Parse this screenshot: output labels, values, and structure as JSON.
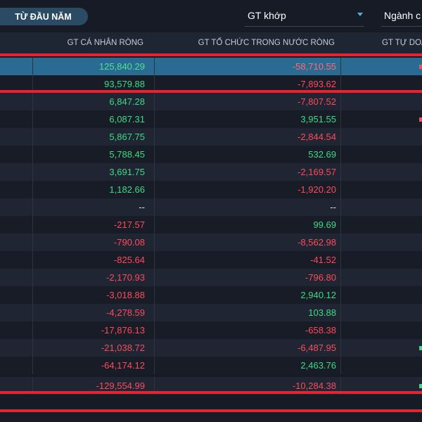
{
  "filter": {
    "period_label": "TỪ ĐẦU NĂM",
    "value_type": "GT khớp",
    "group_select": "Ngành c"
  },
  "table": {
    "headers": {
      "individual": "GT CÁ NHÂN RÒNG",
      "domestic_institution": "GT TỔ CHỨC TRONG NƯỚC RÒNG",
      "proprietary": "GT TỰ DOA"
    },
    "rows": [
      {
        "individual": "125,840.29",
        "individual_sign": "pos",
        "institution": "-58,710.55",
        "institution_sign": "neg",
        "prop_sign": "neg",
        "highlight": true
      },
      {
        "individual": "93,579.88",
        "individual_sign": "pos",
        "institution": "-7,893.62",
        "institution_sign": "neg",
        "prop_sign": ""
      },
      {
        "individual": "6,847.28",
        "individual_sign": "pos",
        "institution": "-7,807.52",
        "institution_sign": "neg",
        "prop_sign": ""
      },
      {
        "individual": "6,087.31",
        "individual_sign": "pos",
        "institution": "3,951.55",
        "institution_sign": "pos",
        "prop_sign": "neg"
      },
      {
        "individual": "5,867.75",
        "individual_sign": "pos",
        "institution": "-2,844.54",
        "institution_sign": "neg",
        "prop_sign": ""
      },
      {
        "individual": "5,788.45",
        "individual_sign": "pos",
        "institution": "532.69",
        "institution_sign": "pos",
        "prop_sign": ""
      },
      {
        "individual": "3,691.75",
        "individual_sign": "pos",
        "institution": "-2,169.57",
        "institution_sign": "neg",
        "prop_sign": ""
      },
      {
        "individual": "1,182.66",
        "individual_sign": "pos",
        "institution": "-1,920.20",
        "institution_sign": "neg",
        "prop_sign": ""
      },
      {
        "individual": "--",
        "individual_sign": "neu",
        "institution": "--",
        "institution_sign": "neu",
        "prop_sign": ""
      },
      {
        "individual": "-217.57",
        "individual_sign": "neg",
        "institution": "99.69",
        "institution_sign": "pos",
        "prop_sign": ""
      },
      {
        "individual": "-790.08",
        "individual_sign": "neg",
        "institution": "-8,562.98",
        "institution_sign": "neg",
        "prop_sign": ""
      },
      {
        "individual": "-825.64",
        "individual_sign": "neg",
        "institution": "-41.52",
        "institution_sign": "neg",
        "prop_sign": ""
      },
      {
        "individual": "-2,170.93",
        "individual_sign": "neg",
        "institution": "-796.80",
        "institution_sign": "neg",
        "prop_sign": ""
      },
      {
        "individual": "-3,018.88",
        "individual_sign": "neg",
        "institution": "2,940.12",
        "institution_sign": "pos",
        "prop_sign": ""
      },
      {
        "individual": "-4,278.59",
        "individual_sign": "neg",
        "institution": "103.88",
        "institution_sign": "pos",
        "prop_sign": ""
      },
      {
        "individual": "-17,876.13",
        "individual_sign": "neg",
        "institution": "-658.38",
        "institution_sign": "neg",
        "prop_sign": ""
      },
      {
        "individual": "-21,038.72",
        "individual_sign": "neg",
        "institution": "-6,487.95",
        "institution_sign": "neg",
        "prop_sign": "pos"
      },
      {
        "individual": "-64,174.12",
        "individual_sign": "neg",
        "institution": "2,463.76",
        "institution_sign": "pos",
        "prop_sign": ""
      },
      {
        "individual": "-129,554.99",
        "individual_sign": "neg",
        "institution": "-10,284.38",
        "institution_sign": "neg",
        "prop_sign": "pos"
      }
    ]
  },
  "colors": {
    "positive": "#3ddc84",
    "negative": "#ff4a5a",
    "highlight_row": "#2a6b94",
    "annotation_box": "#e8222e"
  }
}
